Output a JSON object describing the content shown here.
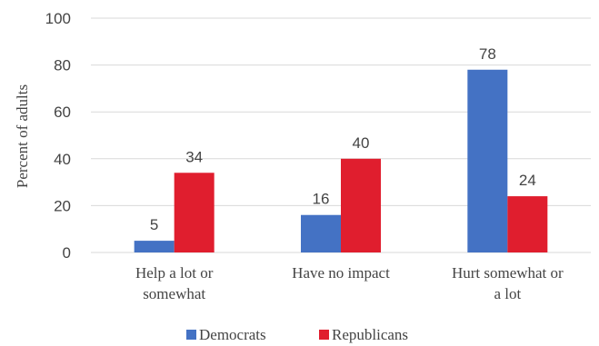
{
  "chart_data": {
    "type": "bar",
    "title": "",
    "xlabel": "",
    "ylabel": "Percent of adults",
    "ylim": [
      0,
      100
    ],
    "yticks": [
      0,
      20,
      40,
      60,
      80,
      100
    ],
    "grid": true,
    "legend_position": "bottom",
    "categories": [
      [
        "Help a lot or",
        "somewhat"
      ],
      [
        "Have no impact"
      ],
      [
        "Hurt somewhat or",
        "a lot"
      ]
    ],
    "series": [
      {
        "name": "Democrats",
        "color": "#4472C4",
        "values": [
          5,
          16,
          78
        ]
      },
      {
        "name": "Republicans",
        "color": "#E01E2E",
        "values": [
          34,
          40,
          24
        ]
      }
    ]
  }
}
